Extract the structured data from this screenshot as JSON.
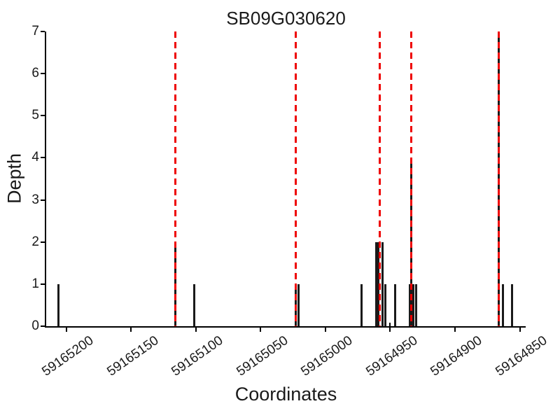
{
  "chart_data": {
    "type": "bar",
    "title": "SB09G030620",
    "xlabel": "Coordinates",
    "ylabel": "Depth",
    "grid": false,
    "legend": null,
    "x_axis_reversed": true,
    "xlim": [
      59165216,
      59164846
    ],
    "ylim": [
      0,
      7
    ],
    "x_ticks": [
      59165200,
      59165150,
      59165100,
      59165050,
      59165000,
      59164950,
      59164900,
      59164850
    ],
    "x_tick_labels": [
      "59165200",
      "59165150",
      "59165100",
      "59165050",
      "59165000",
      "59164950",
      "59164900",
      "59164850"
    ],
    "y_ticks": [
      0,
      1,
      2,
      3,
      4,
      5,
      6,
      7
    ],
    "y_tick_labels": [
      "0",
      "1",
      "2",
      "3",
      "4",
      "5",
      "6",
      "7"
    ],
    "bar_color": "#1a1a1a",
    "marker_line_color": "#ee0000",
    "marker_line_style": "dashed",
    "marker_lines": [
      59165116,
      59165023,
      59164958,
      59164934,
      59164866
    ],
    "inward_tick_at": 59164950,
    "bars": [
      {
        "coordinate": 59165206,
        "depth": 1
      },
      {
        "coordinate": 59165116,
        "depth": 2
      },
      {
        "coordinate": 59165101,
        "depth": 1
      },
      {
        "coordinate": 59165023,
        "depth": 1
      },
      {
        "coordinate": 59165021,
        "depth": 1
      },
      {
        "coordinate": 59164972,
        "depth": 1
      },
      {
        "coordinate": 59164961,
        "depth": 2
      },
      {
        "coordinate": 59164959,
        "depth": 2
      },
      {
        "coordinate": 59164956,
        "depth": 2
      },
      {
        "coordinate": 59164954,
        "depth": 1
      },
      {
        "coordinate": 59164946,
        "depth": 1
      },
      {
        "coordinate": 59164935,
        "depth": 1
      },
      {
        "coordinate": 59164934,
        "depth": 4
      },
      {
        "coordinate": 59164932,
        "depth": 1
      },
      {
        "coordinate": 59164930,
        "depth": 1
      },
      {
        "coordinate": 59164866,
        "depth": 7
      },
      {
        "coordinate": 59164863,
        "depth": 1
      },
      {
        "coordinate": 59164856,
        "depth": 1
      }
    ]
  }
}
